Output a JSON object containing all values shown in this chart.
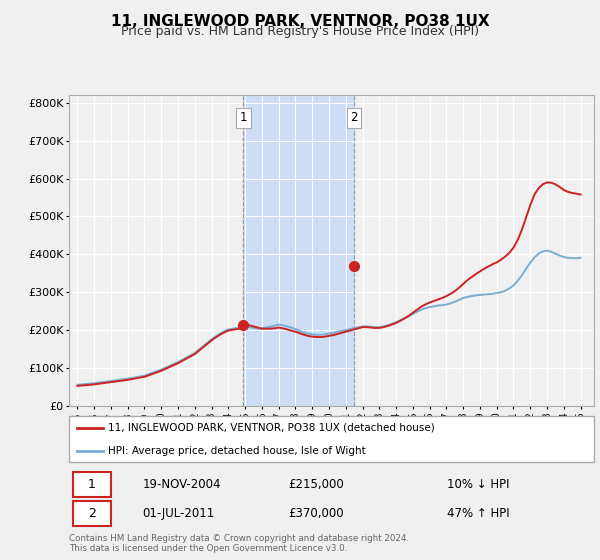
{
  "title": "11, INGLEWOOD PARK, VENTNOR, PO38 1UX",
  "subtitle": "Price paid vs. HM Land Registry's House Price Index (HPI)",
  "hpi_color": "#7aadd4",
  "price_color": "#cc2222",
  "background_color": "#f0f0f0",
  "plot_bg_color": "#f0f0f0",
  "highlight_bg": "#ccddf5",
  "grid_color": "#ffffff",
  "sale1_label": "1",
  "sale2_label": "2",
  "sale1_date": "19-NOV-2004",
  "sale1_price": "£215,000",
  "sale1_hpi": "10% ↓ HPI",
  "sale2_date": "01-JUL-2011",
  "sale2_price": "£370,000",
  "sale2_hpi": "47% ↑ HPI",
  "legend1": "11, INGLEWOOD PARK, VENTNOR, PO38 1UX (detached house)",
  "legend2": "HPI: Average price, detached house, Isle of Wight",
  "footer": "Contains HM Land Registry data © Crown copyright and database right 2024.\nThis data is licensed under the Open Government Licence v3.0.",
  "ylabel_ticks": [
    "£0",
    "£100K",
    "£200K",
    "£300K",
    "£400K",
    "£500K",
    "£600K",
    "£700K",
    "£800K"
  ],
  "ylabel_values": [
    0,
    100000,
    200000,
    300000,
    400000,
    500000,
    600000,
    700000,
    800000
  ],
  "years": [
    1995.0,
    1995.25,
    1995.5,
    1995.75,
    1996.0,
    1996.25,
    1996.5,
    1996.75,
    1997.0,
    1997.25,
    1997.5,
    1997.75,
    1998.0,
    1998.25,
    1998.5,
    1998.75,
    1999.0,
    1999.25,
    1999.5,
    1999.75,
    2000.0,
    2000.25,
    2000.5,
    2000.75,
    2001.0,
    2001.25,
    2001.5,
    2001.75,
    2002.0,
    2002.25,
    2002.5,
    2002.75,
    2003.0,
    2003.25,
    2003.5,
    2003.75,
    2004.0,
    2004.25,
    2004.5,
    2004.75,
    2005.0,
    2005.25,
    2005.5,
    2005.75,
    2006.0,
    2006.25,
    2006.5,
    2006.75,
    2007.0,
    2007.25,
    2007.5,
    2007.75,
    2008.0,
    2008.25,
    2008.5,
    2008.75,
    2009.0,
    2009.25,
    2009.5,
    2009.75,
    2010.0,
    2010.25,
    2010.5,
    2010.75,
    2011.0,
    2011.25,
    2011.5,
    2011.75,
    2012.0,
    2012.25,
    2012.5,
    2012.75,
    2013.0,
    2013.25,
    2013.5,
    2013.75,
    2014.0,
    2014.25,
    2014.5,
    2014.75,
    2015.0,
    2015.25,
    2015.5,
    2015.75,
    2016.0,
    2016.25,
    2016.5,
    2016.75,
    2017.0,
    2017.25,
    2017.5,
    2017.75,
    2018.0,
    2018.25,
    2018.5,
    2018.75,
    2019.0,
    2019.25,
    2019.5,
    2019.75,
    2020.0,
    2020.25,
    2020.5,
    2020.75,
    2021.0,
    2021.25,
    2021.5,
    2021.75,
    2022.0,
    2022.25,
    2022.5,
    2022.75,
    2023.0,
    2023.25,
    2023.5,
    2023.75,
    2024.0,
    2024.25,
    2024.5,
    2024.75,
    2025.0
  ],
  "hpi_values": [
    56000,
    57000,
    58000,
    59000,
    60000,
    61500,
    63000,
    64500,
    66000,
    67500,
    69000,
    70500,
    72000,
    74000,
    76000,
    78000,
    80000,
    84000,
    88000,
    92000,
    96000,
    101000,
    106000,
    111000,
    116000,
    122000,
    128000,
    134000,
    140000,
    149000,
    158000,
    167000,
    176000,
    184000,
    191000,
    197000,
    202000,
    204000,
    206000,
    208000,
    210000,
    208000,
    206000,
    204000,
    205000,
    207000,
    209000,
    212000,
    215000,
    213000,
    210000,
    207000,
    203000,
    198000,
    194000,
    191000,
    189000,
    188000,
    188000,
    189000,
    191000,
    193000,
    196000,
    198000,
    200000,
    203000,
    206000,
    208000,
    210000,
    210000,
    209000,
    208000,
    208000,
    210000,
    213000,
    217000,
    221000,
    226000,
    231000,
    237000,
    243000,
    249000,
    254000,
    258000,
    261000,
    263000,
    265000,
    266000,
    268000,
    271000,
    275000,
    280000,
    285000,
    288000,
    290000,
    292000,
    293000,
    294000,
    295000,
    296000,
    298000,
    300000,
    304000,
    310000,
    318000,
    330000,
    345000,
    362000,
    378000,
    392000,
    402000,
    408000,
    410000,
    407000,
    402000,
    397000,
    393000,
    391000,
    390000,
    390000,
    391000
  ],
  "price_values": [
    53000,
    54000,
    55000,
    56000,
    57000,
    58500,
    60000,
    61500,
    63000,
    64500,
    66000,
    67500,
    69000,
    71000,
    73000,
    75000,
    77000,
    81000,
    85000,
    89000,
    93000,
    98000,
    103000,
    108000,
    113000,
    119000,
    125000,
    131000,
    137000,
    146000,
    155000,
    164000,
    173000,
    181000,
    188000,
    194000,
    199000,
    201000,
    203000,
    205000,
    215000,
    213000,
    210000,
    207000,
    204000,
    204000,
    204000,
    205000,
    207000,
    205000,
    202000,
    199000,
    196000,
    192000,
    188000,
    185000,
    183000,
    182000,
    182000,
    183000,
    185000,
    187000,
    190000,
    193000,
    196000,
    199000,
    202000,
    205000,
    208000,
    208000,
    207000,
    206000,
    206000,
    208000,
    211000,
    215000,
    219000,
    225000,
    231000,
    238000,
    246000,
    254000,
    262000,
    268000,
    273000,
    277000,
    281000,
    285000,
    290000,
    296000,
    303000,
    312000,
    322000,
    332000,
    340000,
    348000,
    355000,
    362000,
    368000,
    374000,
    379000,
    386000,
    394000,
    404000,
    418000,
    438000,
    465000,
    497000,
    530000,
    558000,
    575000,
    585000,
    590000,
    589000,
    585000,
    578000,
    570000,
    565000,
    562000,
    560000,
    558000
  ],
  "sale1_year": 2004.9,
  "sale2_year": 2011.5,
  "sale1_price_val": 215000,
  "sale2_price_val": 370000,
  "vline1_x": 2004.9,
  "vline2_x": 2011.5,
  "xlim_left": 1994.5,
  "xlim_right": 2025.8,
  "ylim_bottom": 0,
  "ylim_top": 820000
}
